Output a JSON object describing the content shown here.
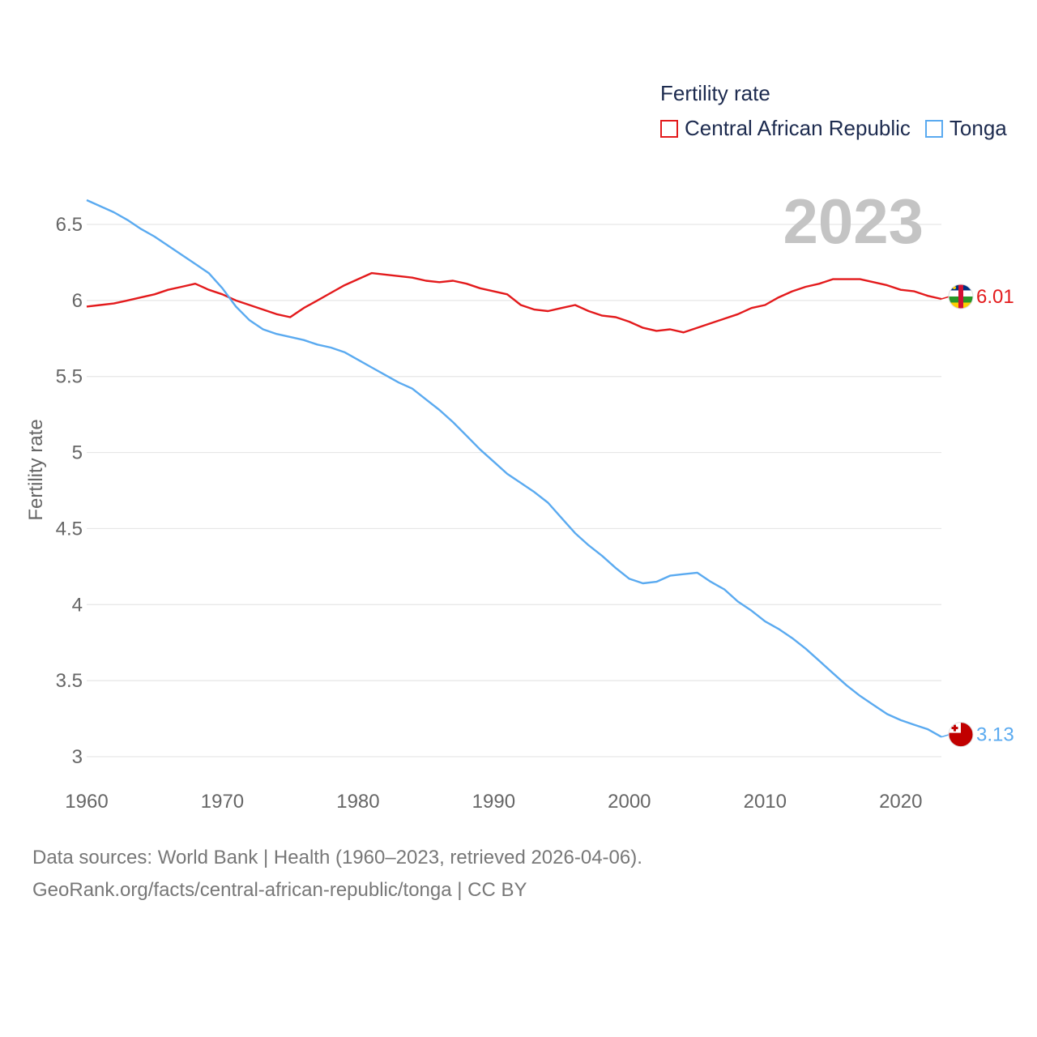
{
  "legend": {
    "title": "Fertility rate",
    "items": [
      {
        "label": "Central African Republic",
        "color": "#e31a1c"
      },
      {
        "label": "Tonga",
        "color": "#5aaaf0"
      }
    ]
  },
  "year_label": "2023",
  "footer": {
    "line1": "Data sources: World Bank | Health (1960–2023, retrieved 2026-04-06).",
    "line2": "GeoRank.org/facts/central-african-republic/tonga | CC BY"
  },
  "chart_data": {
    "type": "line",
    "title": "Fertility rate",
    "xlabel": "",
    "ylabel": "Fertility rate",
    "xlim": [
      1960,
      2023
    ],
    "ylim": [
      3,
      6.7
    ],
    "yticks": [
      3,
      3.5,
      4,
      4.5,
      5,
      5.5,
      6,
      6.5
    ],
    "ytick_labels": [
      "3",
      "3.5",
      "4",
      "4.5",
      "5",
      "5.5",
      "6",
      "6.5"
    ],
    "xticks": [
      1960,
      1970,
      1980,
      1990,
      2000,
      2010,
      2020
    ],
    "xtick_labels": [
      "1960",
      "1970",
      "1980",
      "1990",
      "2000",
      "2010",
      "2020"
    ],
    "grid": true,
    "legend_position": "top-right",
    "x": [
      1960,
      1961,
      1962,
      1963,
      1964,
      1965,
      1966,
      1967,
      1968,
      1969,
      1970,
      1971,
      1972,
      1973,
      1974,
      1975,
      1976,
      1977,
      1978,
      1979,
      1980,
      1981,
      1982,
      1983,
      1984,
      1985,
      1986,
      1987,
      1988,
      1989,
      1990,
      1991,
      1992,
      1993,
      1994,
      1995,
      1996,
      1997,
      1998,
      1999,
      2000,
      2001,
      2002,
      2003,
      2004,
      2005,
      2006,
      2007,
      2008,
      2009,
      2010,
      2011,
      2012,
      2013,
      2014,
      2015,
      2016,
      2017,
      2018,
      2019,
      2020,
      2021,
      2022,
      2023
    ],
    "series": [
      {
        "name": "Central African Republic",
        "color": "#e31a1c",
        "end_label": "6.01",
        "flag": "central-african-republic-flag",
        "values": [
          5.96,
          5.97,
          5.98,
          6.0,
          6.02,
          6.04,
          6.07,
          6.09,
          6.11,
          6.07,
          6.04,
          6.0,
          5.97,
          5.94,
          5.91,
          5.89,
          5.95,
          6.0,
          6.05,
          6.1,
          6.14,
          6.18,
          6.17,
          6.16,
          6.15,
          6.13,
          6.12,
          6.13,
          6.11,
          6.08,
          6.06,
          6.04,
          5.97,
          5.94,
          5.93,
          5.95,
          5.97,
          5.93,
          5.9,
          5.89,
          5.86,
          5.82,
          5.8,
          5.81,
          5.79,
          5.82,
          5.85,
          5.88,
          5.91,
          5.95,
          5.97,
          6.02,
          6.06,
          6.09,
          6.11,
          6.14,
          6.14,
          6.14,
          6.12,
          6.1,
          6.07,
          6.06,
          6.03,
          6.01
        ]
      },
      {
        "name": "Tonga",
        "color": "#5aaaf0",
        "end_label": "3.13",
        "flag": "tonga-flag",
        "values": [
          6.66,
          6.62,
          6.58,
          6.53,
          6.47,
          6.42,
          6.36,
          6.3,
          6.24,
          6.18,
          6.08,
          5.96,
          5.87,
          5.81,
          5.78,
          5.76,
          5.74,
          5.71,
          5.69,
          5.66,
          5.61,
          5.56,
          5.51,
          5.46,
          5.42,
          5.35,
          5.28,
          5.2,
          5.11,
          5.02,
          4.94,
          4.86,
          4.8,
          4.74,
          4.67,
          4.57,
          4.47,
          4.39,
          4.32,
          4.24,
          4.17,
          4.14,
          4.15,
          4.19,
          4.2,
          4.21,
          4.15,
          4.1,
          4.02,
          3.96,
          3.89,
          3.84,
          3.78,
          3.71,
          3.63,
          3.55,
          3.47,
          3.4,
          3.34,
          3.28,
          3.24,
          3.21,
          3.18,
          3.13
        ]
      }
    ]
  }
}
